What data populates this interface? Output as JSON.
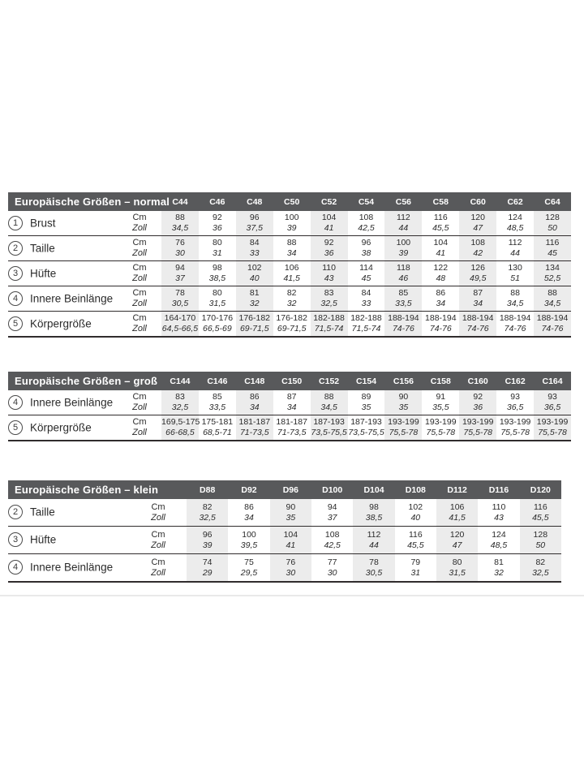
{
  "colors": {
    "header_bar": "#58595b",
    "header_text": "#ffffff",
    "shaded_column": "#ececec",
    "rule_line": "#302c2d",
    "text": "#2b2b2b"
  },
  "units": {
    "cm": "Cm",
    "zoll": "Zoll"
  },
  "tables": [
    {
      "id": "normal",
      "title": "Europäische Größen – normal",
      "sizes": [
        "C44",
        "C46",
        "C48",
        "C50",
        "C52",
        "C54",
        "C56",
        "C58",
        "C60",
        "C62",
        "C64"
      ],
      "rows": [
        {
          "num": "1",
          "label": "Brust",
          "cm": [
            "88",
            "92",
            "96",
            "100",
            "104",
            "108",
            "112",
            "116",
            "120",
            "124",
            "128"
          ],
          "zoll": [
            "34,5",
            "36",
            "37,5",
            "39",
            "41",
            "42,5",
            "44",
            "45,5",
            "47",
            "48,5",
            "50"
          ]
        },
        {
          "num": "2",
          "label": "Taille",
          "cm": [
            "76",
            "80",
            "84",
            "88",
            "92",
            "96",
            "100",
            "104",
            "108",
            "112",
            "116"
          ],
          "zoll": [
            "30",
            "31",
            "33",
            "34",
            "36",
            "38",
            "39",
            "41",
            "42",
            "44",
            "45"
          ]
        },
        {
          "num": "3",
          "label": "Hüfte",
          "cm": [
            "94",
            "98",
            "102",
            "106",
            "110",
            "114",
            "118",
            "122",
            "126",
            "130",
            "134"
          ],
          "zoll": [
            "37",
            "38,5",
            "40",
            "41,5",
            "43",
            "45",
            "46",
            "48",
            "49,5",
            "51",
            "52,5"
          ]
        },
        {
          "num": "4",
          "label": "Innere Beinlänge",
          "cm": [
            "78",
            "80",
            "81",
            "82",
            "83",
            "84",
            "85",
            "86",
            "87",
            "88",
            "88"
          ],
          "zoll": [
            "30,5",
            "31,5",
            "32",
            "32",
            "32,5",
            "33",
            "33,5",
            "34",
            "34",
            "34,5",
            "34,5"
          ]
        },
        {
          "num": "5",
          "label": "Körpergröße",
          "cm": [
            "164-170",
            "170-176",
            "176-182",
            "176-182",
            "182-188",
            "182-188",
            "188-194",
            "188-194",
            "188-194",
            "188-194",
            "188-194"
          ],
          "zoll": [
            "64,5-66,5",
            "66,5-69",
            "69-71,5",
            "69-71,5",
            "71,5-74",
            "71,5-74",
            "74-76",
            "74-76",
            "74-76",
            "74-76",
            "74-76"
          ]
        }
      ]
    },
    {
      "id": "gross",
      "title": "Europäische Größen – groß",
      "sizes": [
        "C144",
        "C146",
        "C148",
        "C150",
        "C152",
        "C154",
        "C156",
        "C158",
        "C160",
        "C162",
        "C164"
      ],
      "rows": [
        {
          "num": "4",
          "label": "Innere Beinlänge",
          "cm": [
            "83",
            "85",
            "86",
            "87",
            "88",
            "89",
            "90",
            "91",
            "92",
            "93",
            "93"
          ],
          "zoll": [
            "32,5",
            "33,5",
            "34",
            "34",
            "34,5",
            "35",
            "35",
            "35,5",
            "36",
            "36,5",
            "36,5"
          ]
        },
        {
          "num": "5",
          "label": "Körpergröße",
          "cm": [
            "169,5-175",
            "175-181",
            "181-187",
            "181-187",
            "187-193",
            "187-193",
            "193-199",
            "193-199",
            "193-199",
            "193-199",
            "193-199"
          ],
          "zoll": [
            "66-68,5",
            "68,5-71",
            "71-73,5",
            "71-73,5",
            "73,5-75,5",
            "73,5-75,5",
            "75,5-78",
            "75,5-78",
            "75,5-78",
            "75,5-78",
            "75,5-78"
          ]
        }
      ]
    },
    {
      "id": "klein",
      "title": "Europäische Größen – klein",
      "sizes": [
        "D88",
        "D92",
        "D96",
        "D100",
        "D104",
        "D108",
        "D112",
        "D116",
        "D120"
      ],
      "rows": [
        {
          "num": "2",
          "label": "Taille",
          "cm": [
            "82",
            "86",
            "90",
            "94",
            "98",
            "102",
            "106",
            "110",
            "116"
          ],
          "zoll": [
            "32,5",
            "34",
            "35",
            "37",
            "38,5",
            "40",
            "41,5",
            "43",
            "45,5"
          ]
        },
        {
          "num": "3",
          "label": "Hüfte",
          "cm": [
            "96",
            "100",
            "104",
            "108",
            "112",
            "116",
            "120",
            "124",
            "128"
          ],
          "zoll": [
            "39",
            "39,5",
            "41",
            "42,5",
            "44",
            "45,5",
            "47",
            "48,5",
            "50"
          ]
        },
        {
          "num": "4",
          "label": "Innere Beinlänge",
          "cm": [
            "74",
            "75",
            "76",
            "77",
            "78",
            "79",
            "80",
            "81",
            "82"
          ],
          "zoll": [
            "29",
            "29,5",
            "30",
            "30",
            "30,5",
            "31",
            "31,5",
            "32",
            "32,5"
          ]
        }
      ]
    }
  ]
}
